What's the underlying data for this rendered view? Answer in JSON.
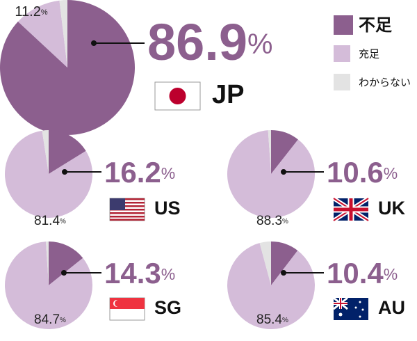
{
  "chart_data": [
    {
      "type": "pie",
      "title": "JP",
      "categories": [
        "不足",
        "充足",
        "わからない"
      ],
      "colors": [
        "#8c5f8e",
        "#d4bcd9",
        "#e3e3e3"
      ],
      "values": [
        86.9,
        11.2,
        1.9
      ],
      "value_labels": [
        "86.9%",
        "11.2%",
        null
      ]
    },
    {
      "type": "pie",
      "title": "US",
      "values": [
        16.2,
        81.4,
        2.4
      ],
      "value_labels": [
        "16.2%",
        "81.4%",
        null
      ]
    },
    {
      "type": "pie",
      "title": "UK",
      "values": [
        10.6,
        88.3,
        1.1
      ],
      "value_labels": [
        "10.6%",
        "88.3%",
        null
      ]
    },
    {
      "type": "pie",
      "title": "SG",
      "values": [
        14.3,
        84.7,
        1.0
      ],
      "value_labels": [
        "14.3%",
        "84.7%",
        null
      ]
    },
    {
      "type": "pie",
      "title": "AU",
      "values": [
        10.4,
        85.4,
        4.2
      ],
      "value_labels": [
        "10.4%",
        "85.4%",
        null
      ]
    }
  ]
}
